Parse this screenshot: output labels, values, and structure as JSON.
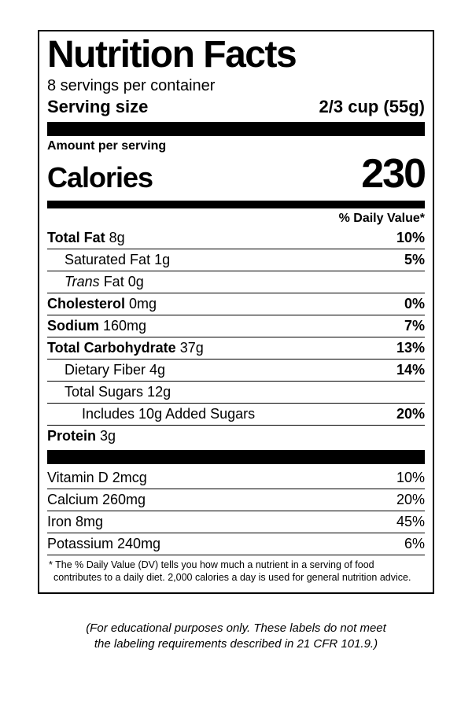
{
  "title": "Nutrition Facts",
  "servings_per_container": "8 servings per container",
  "serving_size_label": "Serving size",
  "serving_size_value": "2/3 cup (55g)",
  "amount_per_serving": "Amount per serving",
  "calories_label": "Calories",
  "calories_value": "230",
  "dv_header": "% Daily Value*",
  "nutrients": {
    "total_fat_label": "Total Fat",
    "total_fat_amt": " 8g",
    "total_fat_dv": "10%",
    "sat_fat_label": "Saturated Fat 1g",
    "sat_fat_dv": "5%",
    "trans_word": "Trans",
    "trans_rest": " Fat 0g",
    "cholesterol_label": "Cholesterol",
    "cholesterol_amt": " 0mg",
    "cholesterol_dv": "0%",
    "sodium_label": "Sodium",
    "sodium_amt": " 160mg",
    "sodium_dv": "7%",
    "carb_label": "Total Carbohydrate",
    "carb_amt": " 37g",
    "carb_dv": "13%",
    "fiber_label": "Dietary Fiber 4g",
    "fiber_dv": "14%",
    "sugars_label": "Total Sugars 12g",
    "added_sugars_label": "Includes 10g Added Sugars",
    "added_sugars_dv": "20%",
    "protein_label": "Protein",
    "protein_amt": " 3g"
  },
  "vitamins": {
    "vitd_label": "Vitamin D 2mcg",
    "vitd_dv": "10%",
    "calcium_label": "Calcium 260mg",
    "calcium_dv": "20%",
    "iron_label": "Iron 8mg",
    "iron_dv": "45%",
    "potassium_label": "Potassium 240mg",
    "potassium_dv": "6%"
  },
  "footnote": "* The % Daily Value (DV) tells you how much a nutrient in a serving of food contributes to a daily diet. 2,000 calories a day is used for general nutrition advice.",
  "disclaimer_l1": "(For educational purposes only. These labels do not meet",
  "disclaimer_l2": "the labeling requirements described in 21 CFR 101.9.)"
}
